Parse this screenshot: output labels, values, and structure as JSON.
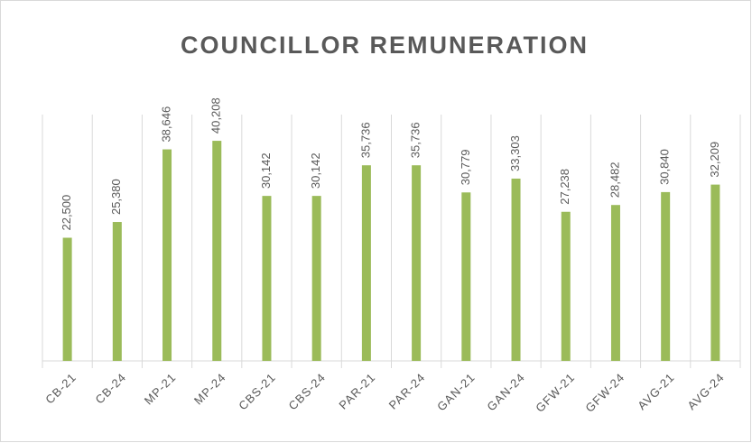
{
  "chart_data": {
    "type": "bar",
    "title": "COUNCILLOR REMUNERATION",
    "categories": [
      "CB-21",
      "CB-24",
      "MP-21",
      "MP-24",
      "CBS-21",
      "CBS-24",
      "PAR-21",
      "PAR-24",
      "GAN-21",
      "GAN-24",
      "GFW-21",
      "GFW-24",
      "AVG-21",
      "AVG-24"
    ],
    "values": [
      22500,
      25380,
      38646,
      40208,
      30142,
      30142,
      35736,
      35736,
      30779,
      33303,
      27238,
      28482,
      30840,
      32209
    ],
    "value_labels": [
      "22,500",
      "25,380",
      "38,646",
      "40,208",
      "30,142",
      "30,142",
      "35,736",
      "35,736",
      "30,779",
      "33,303",
      "27,238",
      "28,482",
      "30,840",
      "32,209"
    ],
    "color": "#9bbb59",
    "ylim": [
      0,
      45000
    ]
  }
}
